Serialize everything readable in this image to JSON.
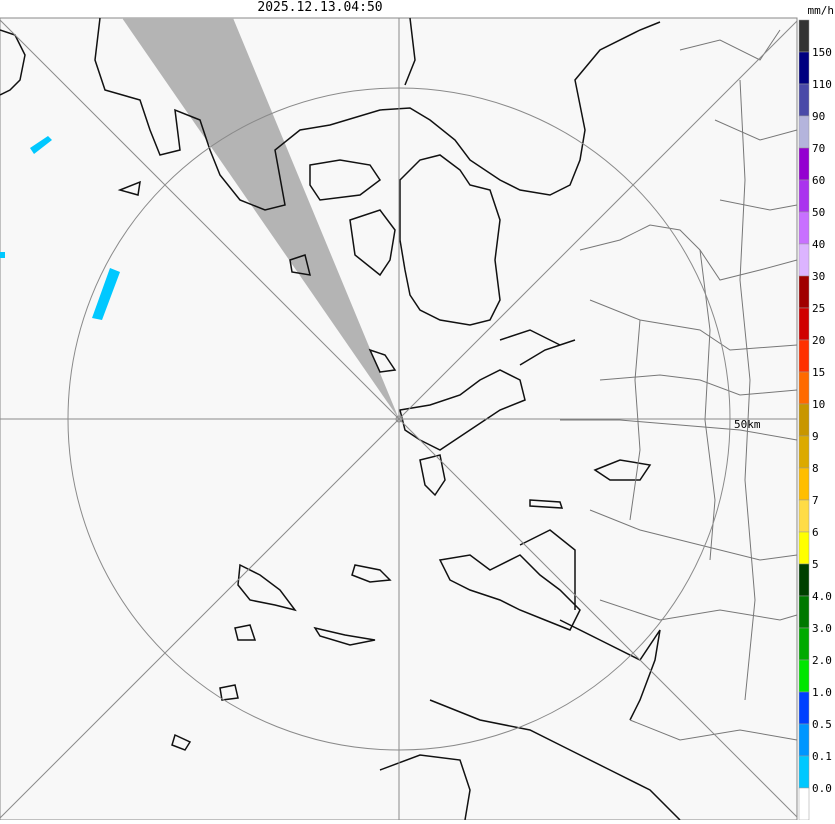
{
  "header": {
    "timestamp": "2025.12.13.04:50"
  },
  "map": {
    "range_label": "50km"
  },
  "legend": {
    "unit": "mm/h",
    "labels": [
      "150",
      "110",
      "90",
      "70",
      "60",
      "50",
      "40",
      "30",
      "25",
      "20",
      "15",
      "10",
      "9",
      "8",
      "7",
      "6",
      "5",
      "4.0",
      "3.0",
      "2.0",
      "1.0",
      "0.5",
      "0.1",
      "0.0"
    ],
    "colors": [
      "#333333",
      "#000080",
      "#4a4aa8",
      "#b4b4dc",
      "#9400d0",
      "#aa33ee",
      "#c870ff",
      "#dcb4ff",
      "#a00000",
      "#d00000",
      "#ff3000",
      "#ff6a00",
      "#c89600",
      "#dcaa00",
      "#ffbe00",
      "#ffdc46",
      "#ffff00",
      "#004000",
      "#007800",
      "#00aa00",
      "#00e600",
      "#0040ff",
      "#0096ff",
      "#00c8ff",
      "#ffffff"
    ]
  }
}
